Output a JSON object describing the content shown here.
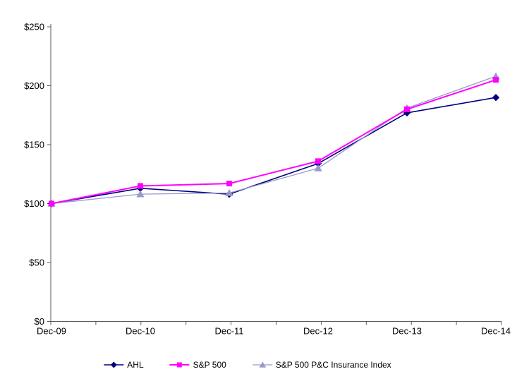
{
  "chart_data": {
    "type": "line",
    "title": "",
    "x": [
      "Dec-09",
      "Dec-10",
      "Dec-11",
      "Dec-12",
      "Dec-13",
      "Dec-14"
    ],
    "series": [
      {
        "name": "AHL",
        "color": "#000080",
        "marker": "diamond",
        "values": [
          100,
          113,
          108,
          134,
          177,
          190
        ]
      },
      {
        "name": "S&P 500",
        "color": "#FF00FF",
        "marker": "square",
        "values": [
          100,
          115,
          117,
          136,
          180,
          205
        ]
      },
      {
        "name": "S&P 500 P&C Insurance Index",
        "color": "#9999CC",
        "marker": "triangle",
        "values": [
          100,
          108,
          109,
          130,
          181,
          208
        ]
      }
    ],
    "ylim": [
      0,
      250
    ],
    "ytick_step": 50,
    "ytick_labels": [
      "$0",
      "$50",
      "$100",
      "$150",
      "$200",
      "$250"
    ],
    "grid": false,
    "legend_position": "bottom",
    "background": "#FFFFFF",
    "axis_color": "#595959",
    "text_color": "#000000"
  }
}
